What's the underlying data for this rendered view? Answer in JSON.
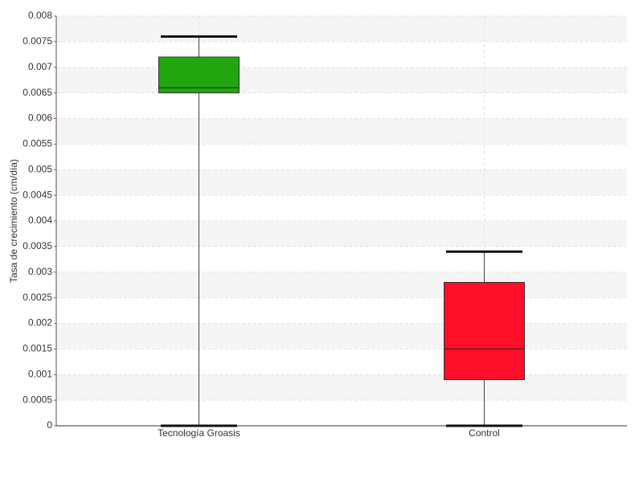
{
  "chart_data": {
    "type": "box",
    "y_label": "Tasa de crecimiento (cm/día)",
    "categories": [
      "Tecnología Groasis",
      "Control"
    ],
    "boxes": [
      {
        "color": "#22a60f",
        "min": 0,
        "q1": 0.0065,
        "median": 0.0066,
        "q3": 0.0072,
        "max": 0.0076
      },
      {
        "color": "#ff0f2a",
        "min": 0,
        "q1": 0.0009,
        "median": 0.0015,
        "q3": 0.0028,
        "max": 0.0034
      }
    ],
    "ylim": [
      0,
      0.008
    ],
    "yticks": [
      0,
      0.0005,
      0.001,
      0.0015,
      0.002,
      0.0025,
      0.003,
      0.0035,
      0.004,
      0.0045,
      0.005,
      0.0055,
      0.006,
      0.0065,
      0.007,
      0.0075,
      0.008
    ],
    "grid": true
  }
}
